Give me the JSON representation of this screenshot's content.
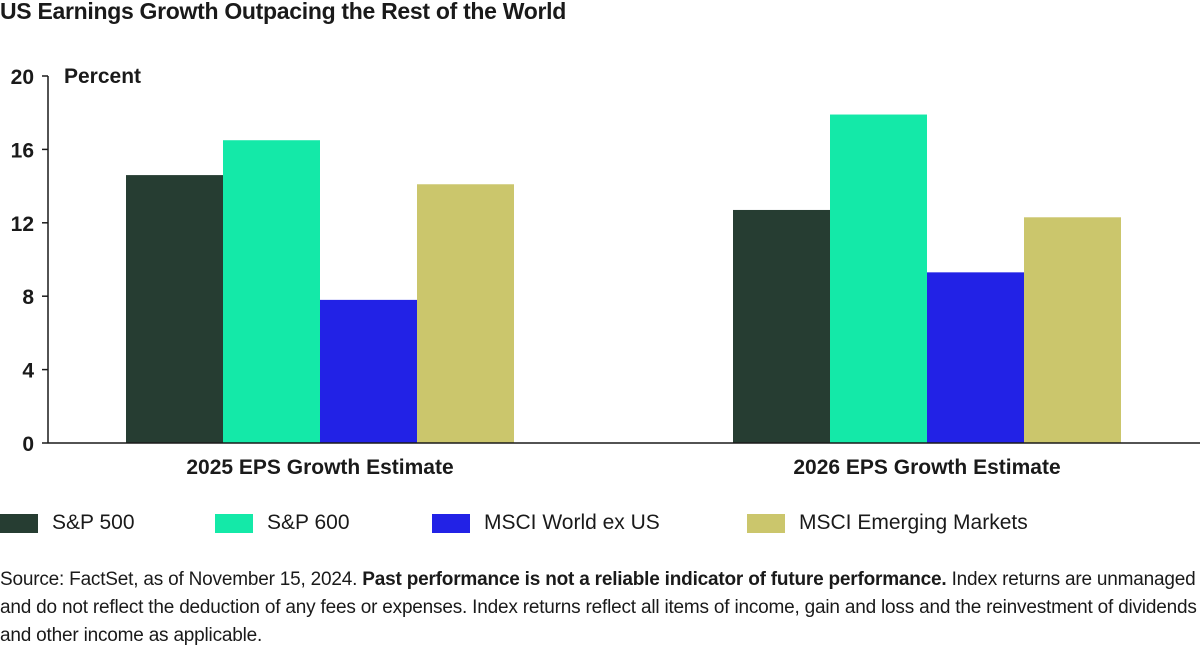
{
  "chart_data": {
    "type": "bar",
    "title": "US Earnings Growth Outpacing the Rest of the World",
    "ylabel": "Percent",
    "xlabel": "",
    "ylim": [
      0,
      20
    ],
    "yticks": [
      "0",
      "4",
      "8",
      "12",
      "16",
      "20"
    ],
    "categories": [
      "2025 EPS Growth Estimate",
      "2026 EPS Growth Estimate"
    ],
    "series": [
      {
        "name": "S&P 500",
        "color": "#263d32",
        "values": [
          14.6,
          12.7
        ]
      },
      {
        "name": "S&P 600",
        "color": "#14e9a8",
        "values": [
          16.5,
          17.9
        ]
      },
      {
        "name": "MSCI World ex US",
        "color": "#2222e6",
        "values": [
          7.8,
          9.3
        ]
      },
      {
        "name": "MSCI Emerging Markets",
        "color": "#cbc66c",
        "values": [
          14.1,
          12.3
        ]
      }
    ],
    "grid": false,
    "legend_position": "bottom"
  },
  "footnote": {
    "source": "Source: FactSet, as of November 15, 2024. ",
    "bold": "Past performance is not a reliable indicator of future performance.",
    "rest": " Index returns are unmanaged and do not reflect the deduction of any fees or expenses. Index returns reflect all items of income, gain and loss and the reinvestment of dividends and other income as applicable."
  }
}
